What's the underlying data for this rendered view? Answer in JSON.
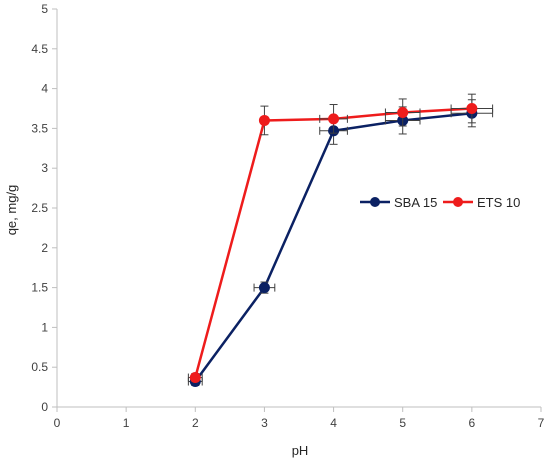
{
  "chart_data": {
    "type": "line",
    "xlabel": "pH",
    "ylabel": "qe, mg/g",
    "xlim": [
      0,
      7
    ],
    "ylim": [
      0,
      5
    ],
    "xticks": [
      "0",
      "1",
      "2",
      "3",
      "4",
      "5",
      "6",
      "7"
    ],
    "yticks": [
      "0",
      "0.5",
      "1",
      "1.5",
      "2",
      "2.5",
      "3",
      "3.5",
      "4",
      "4.5",
      "5"
    ],
    "grid": false,
    "legend_position": "right-middle",
    "series": [
      {
        "name": "SBA 15",
        "color": "#0b2163",
        "x": [
          2,
          3,
          4,
          5,
          6
        ],
        "y": [
          0.32,
          1.5,
          3.47,
          3.6,
          3.69
        ],
        "x_error": [
          0.1,
          0.15,
          0.2,
          0.25,
          0.3
        ],
        "y_error": [
          0.05,
          0.07,
          0.17,
          0.17,
          0.17
        ]
      },
      {
        "name": "ETS 10",
        "color": "#ee1c1c",
        "x": [
          2,
          3,
          4,
          5,
          6
        ],
        "y": [
          0.37,
          3.6,
          3.62,
          3.7,
          3.75
        ],
        "x_error": [
          0.1,
          0.05,
          0.2,
          0.25,
          0.3
        ],
        "y_error": [
          0.05,
          0.18,
          0.18,
          0.17,
          0.18
        ]
      }
    ]
  }
}
